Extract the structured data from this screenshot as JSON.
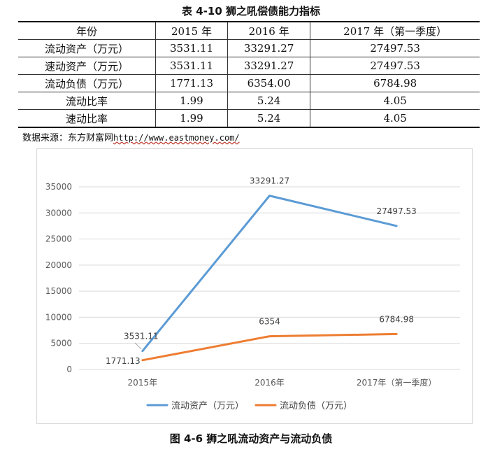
{
  "table": {
    "title": "表 4-10  狮之吼偿债能力指标",
    "header": [
      "年份",
      "2015 年",
      "2016 年",
      "2017 年（第一季度）"
    ],
    "rows": [
      [
        "流动资产（万元）",
        "3531.11",
        "33291.27",
        "27497.53"
      ],
      [
        "速动资产（万元）",
        "3531.11",
        "33291.27",
        "27497.53"
      ],
      [
        "流动负债（万元）",
        "1771.13",
        "6354.00",
        "6784.98"
      ],
      [
        "流动比率",
        "1.99",
        "5.24",
        "4.05"
      ],
      [
        "速动比率",
        "1.99",
        "5.24",
        "4.05"
      ]
    ]
  },
  "source": {
    "label": "数据来源：东方财富网",
    "url": "http://www.eastmoney.com/"
  },
  "figure_title": "图 4-6  狮之吼流动资产与流动负债",
  "chart_data": {
    "type": "line",
    "categories": [
      "2015年",
      "2016年",
      "2017年（第一季度）"
    ],
    "series": [
      {
        "name": "流动资产（万元）",
        "values": [
          3531.11,
          33291.27,
          27497.53
        ],
        "labels": [
          "3531.11",
          "33291.27",
          "27497.53"
        ],
        "color": "#5b9bd5"
      },
      {
        "name": "流动负债（万元）",
        "values": [
          1771.13,
          6354,
          6784.98
        ],
        "labels": [
          "1771.13",
          "6354",
          "6784.98"
        ],
        "color": "#ed7d31"
      }
    ],
    "ylim": [
      0,
      35000
    ],
    "yticks": [
      0,
      5000,
      10000,
      15000,
      20000,
      25000,
      30000,
      35000
    ],
    "grid": true,
    "legend": "bottom"
  }
}
